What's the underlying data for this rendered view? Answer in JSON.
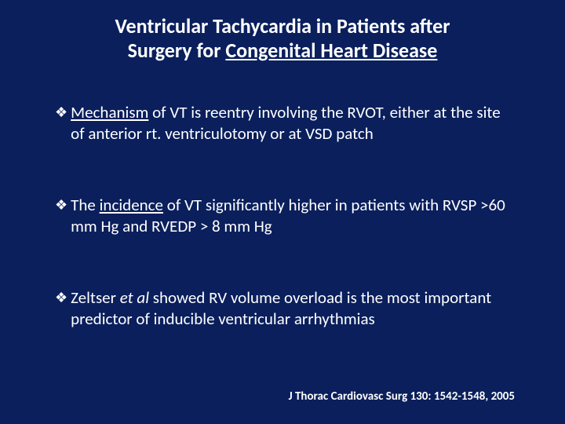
{
  "colors": {
    "background": "#0a1f5c",
    "text": "#ffffff",
    "bullet": "#ffffff"
  },
  "typography": {
    "title_fontsize": 26,
    "title_weight": 700,
    "body_fontsize": 21,
    "citation_fontsize": 15,
    "font_family": "Calibri"
  },
  "title": {
    "line1": "Ventricular Tachycardia in Patients after",
    "line2_prefix": "Surgery for ",
    "line2_underlined": "Congenital Heart Disease"
  },
  "bullets": [
    {
      "marker": "❖",
      "prefix": "",
      "underlined": "Mechanism",
      "rest": " of VT is reentry involving the RVOT, either at the site of anterior rt. ventriculotomy or at VSD patch"
    },
    {
      "marker": "❖",
      "prefix": "The ",
      "underlined": "incidence",
      "rest": " of VT significantly higher in patients with RVSP >60 mm Hg  and RVEDP > 8 mm Hg"
    },
    {
      "marker": "❖",
      "prefix": "Zeltser ",
      "italic": "et al",
      "rest2": " showed RV volume overload is the most important predictor of inducible ventricular arrhythmias"
    }
  ],
  "citation": "J Thorac Cardiovasc Surg 130: 1542-1548, 2005"
}
